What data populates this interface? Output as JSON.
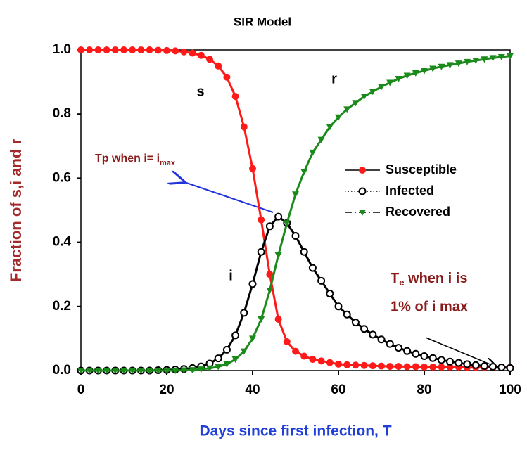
{
  "chart_data": {
    "type": "line",
    "title": "SIR Model",
    "x_label": "Days since first infection, T",
    "y_label": "Fraction of s,i and r",
    "x": [
      0,
      2,
      4,
      6,
      8,
      10,
      12,
      14,
      16,
      18,
      20,
      22,
      24,
      26,
      28,
      30,
      32,
      34,
      36,
      38,
      40,
      42,
      44,
      46,
      48,
      50,
      52,
      54,
      56,
      58,
      60,
      62,
      64,
      66,
      68,
      70,
      72,
      74,
      76,
      78,
      80,
      82,
      84,
      86,
      88,
      90,
      92,
      94,
      96,
      98,
      100
    ],
    "series": [
      {
        "name": "Susceptible",
        "color": "#ff1a1a",
        "marker": "circle",
        "dash": "solid",
        "values": [
          1,
          1,
          1,
          1,
          1,
          1,
          1,
          1,
          1,
          0.999,
          0.998,
          0.997,
          0.994,
          0.99,
          0.983,
          0.971,
          0.95,
          0.915,
          0.855,
          0.76,
          0.63,
          0.47,
          0.3,
          0.16,
          0.09,
          0.06,
          0.045,
          0.035,
          0.03,
          0.025,
          0.02,
          0.018,
          0.017,
          0.016,
          0.015,
          0.014,
          0.013,
          0.013,
          0.012,
          0.012,
          0.011,
          0.011,
          0.011,
          0.011,
          0.011,
          0.01,
          0.01,
          0.01,
          0.01,
          0.01,
          0.01
        ]
      },
      {
        "name": "Infected",
        "color": "#000000",
        "marker": "open-circle",
        "dash": "dotted",
        "values": [
          0,
          0,
          0,
          0,
          0,
          0,
          0,
          0,
          0,
          0.001,
          0.002,
          0.003,
          0.005,
          0.008,
          0.013,
          0.022,
          0.038,
          0.065,
          0.11,
          0.18,
          0.27,
          0.37,
          0.45,
          0.48,
          0.46,
          0.42,
          0.37,
          0.32,
          0.28,
          0.24,
          0.2,
          0.175,
          0.15,
          0.13,
          0.112,
          0.097,
          0.083,
          0.071,
          0.061,
          0.052,
          0.045,
          0.039,
          0.033,
          0.028,
          0.024,
          0.02,
          0.017,
          0.014,
          0.012,
          0.01,
          0.008
        ]
      },
      {
        "name": "Recovered",
        "color": "#1a8a1a",
        "marker": "triangle-down",
        "dash": "dashdot",
        "values": [
          0,
          0,
          0,
          0,
          0,
          0,
          0,
          0,
          0,
          0,
          0,
          0,
          0.001,
          0.002,
          0.004,
          0.007,
          0.012,
          0.02,
          0.035,
          0.06,
          0.1,
          0.16,
          0.25,
          0.36,
          0.46,
          0.55,
          0.62,
          0.68,
          0.72,
          0.76,
          0.79,
          0.815,
          0.835,
          0.855,
          0.87,
          0.885,
          0.898,
          0.91,
          0.92,
          0.928,
          0.935,
          0.942,
          0.948,
          0.953,
          0.958,
          0.963,
          0.967,
          0.971,
          0.975,
          0.978,
          0.981
        ]
      }
    ],
    "xlim": [
      0,
      100
    ],
    "xticks": [
      0,
      20,
      40,
      60,
      80,
      100
    ],
    "ylim": [
      0,
      1
    ],
    "yticks": [
      {
        "value": 0,
        "label": "0.0"
      },
      0.2,
      0.4,
      0.6,
      0.8,
      {
        "value": 1,
        "label": "1.0"
      }
    ],
    "legend": "right",
    "annotations": {
      "s": "s",
      "r": "r",
      "i": "i",
      "tp": {
        "text": "Tp when i= i",
        "sub": "max"
      },
      "te": {
        "main": "T",
        "sub": "e",
        "rest": " when i is",
        "line2": "1% of  i max"
      }
    }
  }
}
